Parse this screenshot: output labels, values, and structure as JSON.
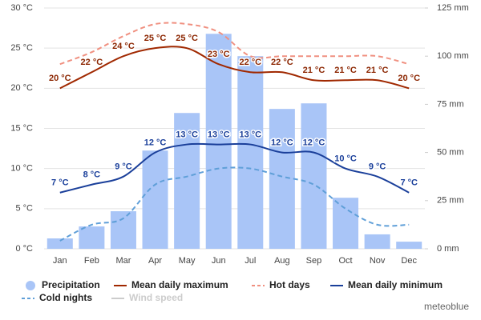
{
  "chart_data": {
    "type": "climate",
    "categories": [
      "Jan",
      "Feb",
      "Mar",
      "Apr",
      "May",
      "Jun",
      "Jul",
      "Aug",
      "Sep",
      "Oct",
      "Nov",
      "Dec"
    ],
    "ylim": [
      0,
      30
    ],
    "yticks": [
      {
        "value": 0,
        "label": "0 °C"
      },
      {
        "value": 5,
        "label": "5 °C"
      },
      {
        "value": 10,
        "label": "10 °C"
      },
      {
        "value": 15,
        "label": "15 °C"
      },
      {
        "value": 20,
        "label": "20 °C"
      },
      {
        "value": 25,
        "label": "25 °C"
      },
      {
        "value": 30,
        "label": "30 °C"
      }
    ],
    "y2lim": [
      0,
      125
    ],
    "y2ticks": [
      {
        "value": 0,
        "label": "0 mm"
      },
      {
        "value": 25,
        "label": "25 mm"
      },
      {
        "value": 50,
        "label": "50 mm"
      },
      {
        "value": 75,
        "label": "75 mm"
      },
      {
        "value": 100,
        "label": "100 mm"
      },
      {
        "value": 125,
        "label": "125 mm"
      }
    ],
    "grid": true,
    "series": [
      {
        "name": "Precipitation",
        "type": "bar",
        "axis": "y2",
        "color": "#a9c5f7",
        "values": [
          5.4,
          11.6,
          19.5,
          51,
          70.5,
          111.6,
          100,
          72.6,
          75.5,
          26.5,
          7.5,
          3.7
        ]
      },
      {
        "name": "Mean daily maximum",
        "type": "line",
        "color": "#a02800",
        "label_color": "#8b2500",
        "values": [
          20,
          22,
          24,
          25,
          25,
          23,
          22,
          22,
          21,
          21,
          21,
          20
        ],
        "value_labels": [
          "20 °C",
          "22 °C",
          "24 °C",
          "25 °C",
          "25 °C",
          "23 °C",
          "22 °C",
          "22 °C",
          "21 °C",
          "21 °C",
          "21 °C",
          "20 °C"
        ]
      },
      {
        "name": "Hot days",
        "type": "line",
        "dashed": true,
        "color": "#f09080",
        "values": [
          23,
          24.5,
          26.5,
          28,
          28,
          27,
          24,
          24,
          24,
          24,
          24,
          23
        ]
      },
      {
        "name": "Mean daily minimum",
        "type": "line",
        "color": "#1a3f9a",
        "label_color": "#1a3f9a",
        "values": [
          7,
          8,
          9,
          12,
          13,
          13,
          13,
          12,
          12,
          10,
          9,
          7
        ],
        "value_labels": [
          "7 °C",
          "8 °C",
          "9 °C",
          "12 °C",
          "13 °C",
          "13 °C",
          "13 °C",
          "12 °C",
          "12 °C",
          "10 °C",
          "9 °C",
          "7 °C"
        ]
      },
      {
        "name": "Cold nights",
        "type": "line",
        "dashed": true,
        "color": "#5f9fd8",
        "values": [
          1,
          3,
          3.8,
          8,
          9,
          10,
          10,
          9,
          8,
          5,
          3,
          3
        ]
      },
      {
        "name": "Wind speed",
        "type": "line",
        "visible": false,
        "color": "#cccccc"
      }
    ],
    "brand": "meteoblue"
  }
}
